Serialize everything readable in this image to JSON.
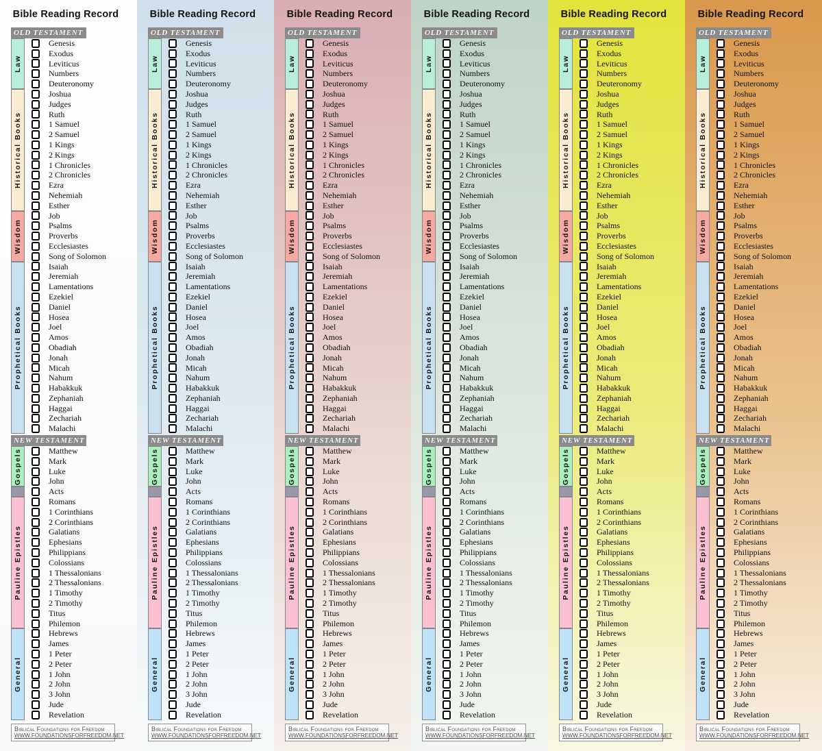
{
  "bookmark": {
    "title": "Bible Reading Record",
    "old_testament": {
      "label": "OLD TESTAMENT",
      "sections": [
        {
          "label": "Law",
          "color": "#b7eeda",
          "books": [
            "Genesis",
            "Exodus",
            "Leviticus",
            "Numbers",
            "Deuteronomy"
          ]
        },
        {
          "label": "Historical Books",
          "color": "#fbecd2",
          "books": [
            "Joshua",
            "Judges",
            "Ruth",
            "1 Samuel",
            "2 Samuel",
            "1 Kings",
            "2 Kings",
            "1 Chronicles",
            "2 Chronicles",
            "Ezra",
            "Nehemiah",
            "Esther"
          ]
        },
        {
          "label": "Wisdom",
          "color": "#f5a9a1",
          "books": [
            "Job",
            "Psalms",
            "Proverbs",
            "Ecclesiastes",
            "Song of Solomon"
          ]
        },
        {
          "label": "Prophetical Books",
          "color": "#c8e1f0",
          "books": [
            "Isaiah",
            "Jeremiah",
            "Lamentations",
            "Ezekiel",
            "Daniel",
            "Hosea",
            "Joel",
            "Amos",
            "Obadiah",
            "Jonah",
            "Micah",
            "Nahum",
            "Habakkuk",
            "Zephaniah",
            "Haggai",
            "Zechariah",
            "Malachi"
          ]
        }
      ]
    },
    "new_testament": {
      "label": "NEW TESTAMENT",
      "sections": [
        {
          "label": "Gospels",
          "color": "#abefbe",
          "books": [
            "Matthew",
            "Mark",
            "Luke",
            "John"
          ]
        },
        {
          "label": "",
          "color": "#9a97ab",
          "books": [
            "Acts"
          ]
        },
        {
          "label": "Pauline Epistles",
          "color": "#fbc0d2",
          "books": [
            "Romans",
            "1 Corinthians",
            "2 Corinthians",
            "Galatians",
            "Ephesians",
            "Philippians",
            "Colossians",
            "1 Thessalonians",
            "2 Thessalonians",
            "1 Timothy",
            "2 Timothy",
            "Titus",
            "Philemon"
          ]
        },
        {
          "label": "General",
          "color": "#bee3f8",
          "books": [
            "Hebrews",
            "James",
            "1 Peter",
            "2 Peter",
            "1 John",
            "2 John",
            "3 John",
            "Jude",
            "Revelation"
          ]
        }
      ]
    },
    "header_band_color": "#8b8b8b",
    "footer": {
      "line1": "Biblical Foundations for Freedom",
      "line2": "WWW.FOUNDATIONSFORFREEDOM.NET"
    }
  },
  "columns": [
    {
      "name": "white",
      "bg_top": "#fefefe",
      "bg_mid": "#fcfcfc",
      "bg_bottom": "#fafafa"
    },
    {
      "name": "blue",
      "bg_top": "#cfe0ea",
      "bg_mid": "#ddeaf0",
      "bg_bottom": "#f7fafb"
    },
    {
      "name": "pink",
      "bg_top": "#d9aeb2",
      "bg_mid": "#e9d4ce",
      "bg_bottom": "#f5f0e9"
    },
    {
      "name": "sage",
      "bg_top": "#bed3c7",
      "bg_mid": "#dde8de",
      "bg_bottom": "#f3f6f2"
    },
    {
      "name": "yellow",
      "bg_top": "#e3e33c",
      "bg_mid": "#ebeb7c",
      "bg_bottom": "#f8f8e4"
    },
    {
      "name": "orange",
      "bg_top": "#d9984c",
      "bg_mid": "#eac28d",
      "bg_bottom": "#f8efe2"
    }
  ]
}
